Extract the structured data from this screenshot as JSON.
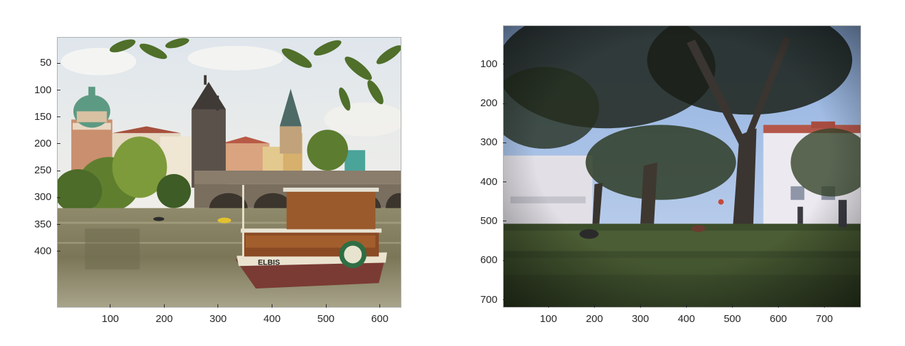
{
  "figures": [
    {
      "id": "left",
      "description": "",
      "x_ticks": [
        "100",
        "200",
        "300",
        "400",
        "500",
        "600"
      ],
      "y_ticks": [
        "50",
        "100",
        "150",
        "200",
        "250",
        "300",
        "350",
        "400"
      ],
      "x_range": [
        1,
        640
      ],
      "y_range": [
        1,
        505
      ],
      "x_tick_values": [
        100,
        200,
        300,
        400,
        500,
        600
      ],
      "y_tick_values": [
        50,
        100,
        150,
        200,
        250,
        300,
        350,
        400
      ],
      "boat_name": "ELBIS"
    },
    {
      "id": "right",
      "description": "",
      "x_ticks": [
        "100",
        "200",
        "300",
        "400",
        "500",
        "600",
        "700"
      ],
      "y_ticks": [
        "100",
        "200",
        "300",
        "400",
        "500",
        "600",
        "700"
      ],
      "x_range": [
        1,
        780
      ],
      "y_range": [
        1,
        720
      ],
      "x_tick_values": [
        100,
        200,
        300,
        400,
        500,
        600,
        700
      ],
      "y_tick_values": [
        100,
        200,
        300,
        400,
        500,
        600,
        700
      ]
    }
  ],
  "colors": {
    "axis": "#262626",
    "frame": "#b0b0b0",
    "background": "#ffffff"
  }
}
